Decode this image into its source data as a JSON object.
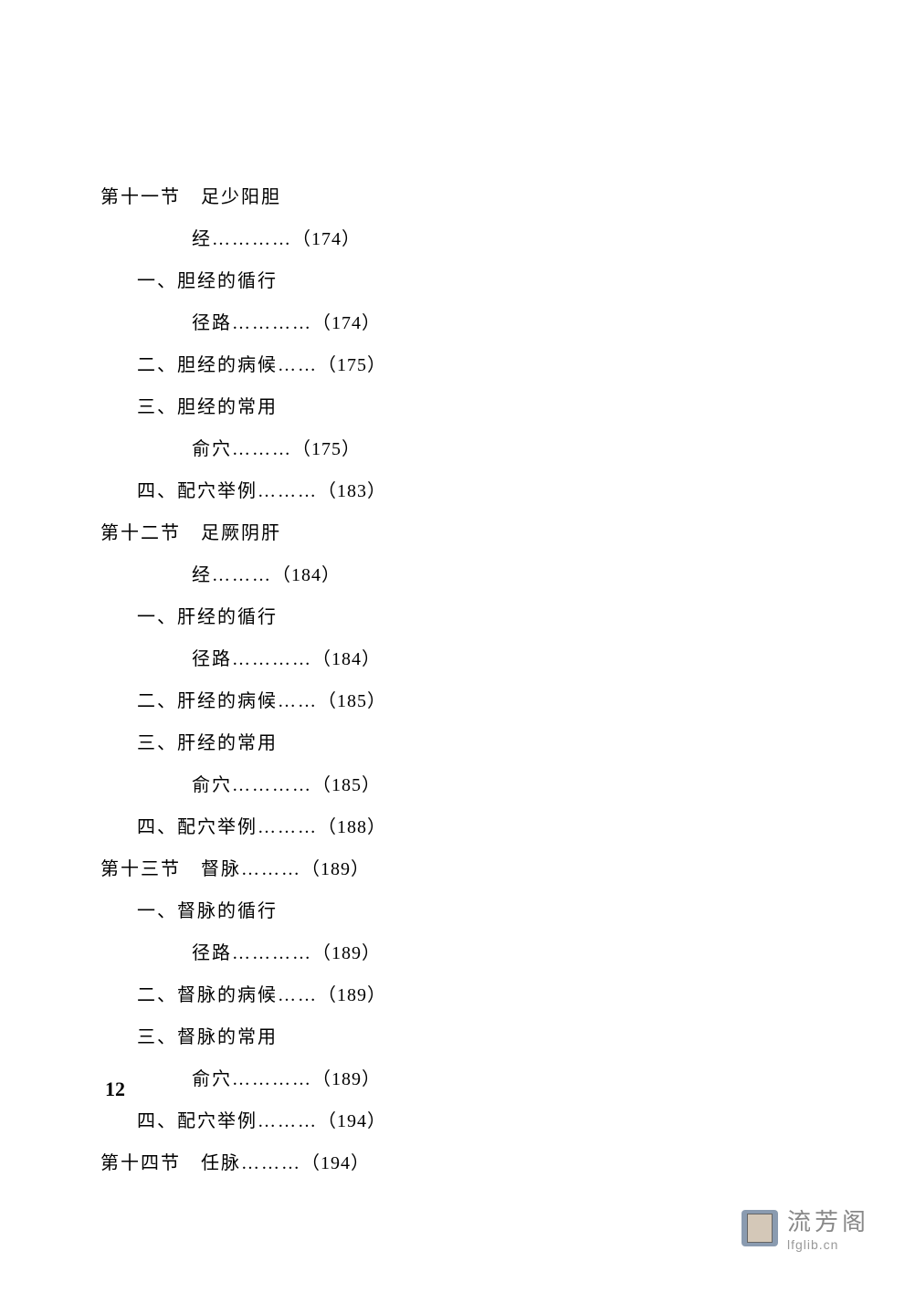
{
  "toc_entries": [
    {
      "text": "第十一节　足少阳胆",
      "page": "",
      "class": "section-title"
    },
    {
      "text": "经…………",
      "page": "（174）",
      "class": "section-continuation"
    },
    {
      "text": "一、胆经的循行",
      "page": "",
      "class": "sub-item"
    },
    {
      "text": "径路…………",
      "page": "（174）",
      "class": "sub-continuation"
    },
    {
      "text": "二、胆经的病候……",
      "page": "（175）",
      "class": "sub-item"
    },
    {
      "text": "三、胆经的常用",
      "page": "",
      "class": "sub-item"
    },
    {
      "text": "俞穴………",
      "page": "（175）",
      "class": "sub-continuation"
    },
    {
      "text": "四、配穴举例………",
      "page": "（183）",
      "class": "sub-item"
    },
    {
      "text": "第十二节　足厥阴肝",
      "page": "",
      "class": "section-title"
    },
    {
      "text": "经………",
      "page": "（184）",
      "class": "section-continuation"
    },
    {
      "text": "一、肝经的循行",
      "page": "",
      "class": "sub-item"
    },
    {
      "text": "径路…………",
      "page": "（184）",
      "class": "sub-continuation"
    },
    {
      "text": "二、肝经的病候……",
      "page": "（185）",
      "class": "sub-item"
    },
    {
      "text": "三、肝经的常用",
      "page": "",
      "class": "sub-item"
    },
    {
      "text": "俞穴…………",
      "page": "（185）",
      "class": "sub-continuation"
    },
    {
      "text": "四、配穴举例………",
      "page": "（188）",
      "class": "sub-item"
    },
    {
      "text": "第十三节　督脉………",
      "page": "（189）",
      "class": "section-title"
    },
    {
      "text": "一、督脉的循行",
      "page": "",
      "class": "sub-item"
    },
    {
      "text": "径路…………",
      "page": "（189）",
      "class": "sub-continuation"
    },
    {
      "text": "二、督脉的病候……",
      "page": "（189）",
      "class": "sub-item"
    },
    {
      "text": "三、督脉的常用",
      "page": "",
      "class": "sub-item"
    },
    {
      "text": "俞穴…………",
      "page": "（189）",
      "class": "sub-continuation"
    },
    {
      "text": "四、配穴举例………",
      "page": "（194）",
      "class": "sub-item"
    },
    {
      "text": "第十四节　任脉………",
      "page": "（194）",
      "class": "section-title"
    }
  ],
  "page_number": "12",
  "watermark": {
    "name": "流芳阁",
    "url": "lfglib.cn"
  },
  "colors": {
    "text": "#000000",
    "background": "#ffffff",
    "watermark_text": "#888888",
    "watermark_url": "#999999"
  },
  "typography": {
    "body_fontsize": 20,
    "page_number_fontsize": 22,
    "watermark_name_fontsize": 26,
    "watermark_url_fontsize": 14
  }
}
